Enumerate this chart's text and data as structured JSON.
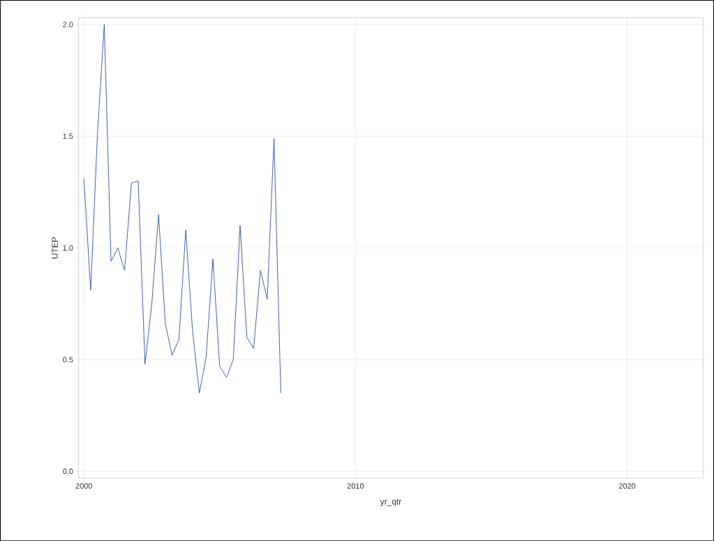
{
  "chart_data": {
    "type": "line",
    "xlabel": "yr_qtr",
    "ylabel": "UTEP",
    "x": [
      2000,
      2000.25,
      2000.5,
      2000.75,
      2001,
      2001.25,
      2001.5,
      2001.75,
      2002,
      2002.25,
      2002.5,
      2002.75,
      2003,
      2003.25,
      2003.5,
      2003.75,
      2004,
      2004.25,
      2004.5,
      2004.75,
      2005,
      2005.25,
      2005.5,
      2005.75,
      2006,
      2006.25,
      2006.5,
      2006.75,
      2007,
      2007.25
    ],
    "series": [
      {
        "color": "#2a4ea6",
        "values": [
          1.31,
          0.81,
          1.51,
          2.0,
          0.94,
          1.0,
          0.9,
          1.29,
          1.3,
          0.48,
          0.75,
          1.15,
          0.66,
          0.52,
          0.59,
          1.08,
          0.63,
          0.35,
          0.51,
          0.95,
          0.47,
          0.42,
          0.5,
          1.1,
          0.6,
          0.55,
          0.9,
          0.77,
          1.49,
          0.35
        ]
      }
    ],
    "xlim": [
      1999.8,
      2022.8
    ],
    "ylim": [
      -0.03,
      2.03
    ],
    "xticks": [
      2000,
      2010,
      2020
    ],
    "yticks": [
      {
        "value": 0,
        "label": "0.0"
      },
      {
        "value": 0.5,
        "label": "0.5"
      },
      {
        "value": 1,
        "label": "1.0"
      },
      {
        "value": 1.5,
        "label": "1.5"
      },
      {
        "value": 2,
        "label": "2.0"
      }
    ],
    "grid": true,
    "line_style": "solid",
    "marker": "none"
  }
}
